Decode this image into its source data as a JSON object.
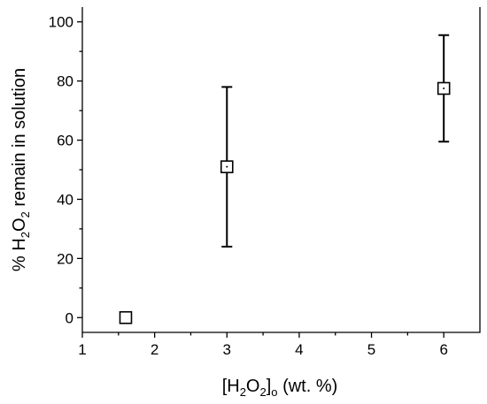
{
  "chart_data": {
    "type": "scatter",
    "xlabel": {
      "open": "[H",
      "sub1": "2",
      "mid": "O",
      "sub2": "2",
      "close": "]",
      "sub3": "o",
      "rest": " (wt. %)"
    },
    "ylabel": {
      "pre": "% H",
      "sub1": "2",
      "mid": "O",
      "sub2": "2",
      "rest": " remain in solution"
    },
    "xlim": [
      1,
      6.5
    ],
    "ylim": [
      -5,
      105
    ],
    "x_ticks": [
      "1",
      "2",
      "3",
      "4",
      "5",
      "6"
    ],
    "y_ticks": [
      "0",
      "20",
      "40",
      "60",
      "80",
      "100"
    ],
    "points": [
      {
        "x": 1.6,
        "y": 0,
        "err_low": 0,
        "err_high": 0
      },
      {
        "x": 3,
        "y": 51,
        "err_low": 24,
        "err_high": 78
      },
      {
        "x": 6,
        "y": 77.5,
        "err_low": 59.5,
        "err_high": 95.5
      }
    ],
    "marker": "open-square",
    "grid": false,
    "legend": "none"
  }
}
